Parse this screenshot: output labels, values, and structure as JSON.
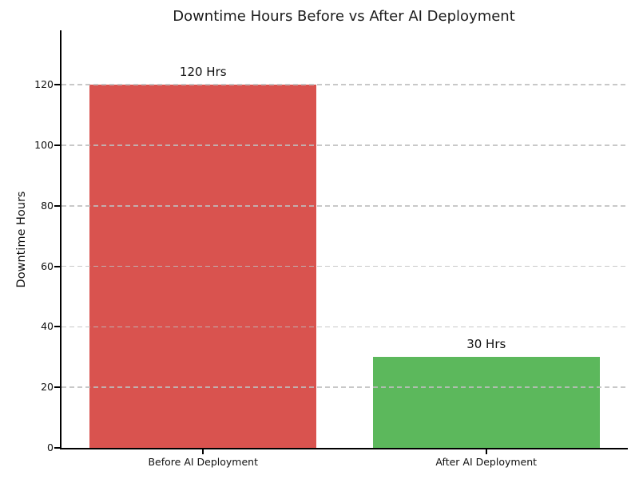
{
  "chart_data": {
    "type": "bar",
    "title": "Downtime Hours Before vs After AI Deployment",
    "xlabel": "",
    "ylabel": "Downtime Hours",
    "categories": [
      "Before AI Deployment",
      "After AI Deployment"
    ],
    "values": [
      120,
      30
    ],
    "bar_labels": [
      "120 Hrs",
      "30 Hrs"
    ],
    "bar_colors": [
      "#d9534f",
      "#5cb85c"
    ],
    "yticks": [
      0,
      20,
      40,
      60,
      80,
      100,
      120
    ],
    "ylim": [
      0,
      138
    ],
    "bar_width_fraction": 0.8,
    "grid": "y-axis dashed horizontal lines",
    "legend": "none"
  },
  "style": {
    "background": "#ffffff",
    "title_color": "#1c1c1c",
    "axis_color": "#000000",
    "grid_color": "#bebebe"
  }
}
